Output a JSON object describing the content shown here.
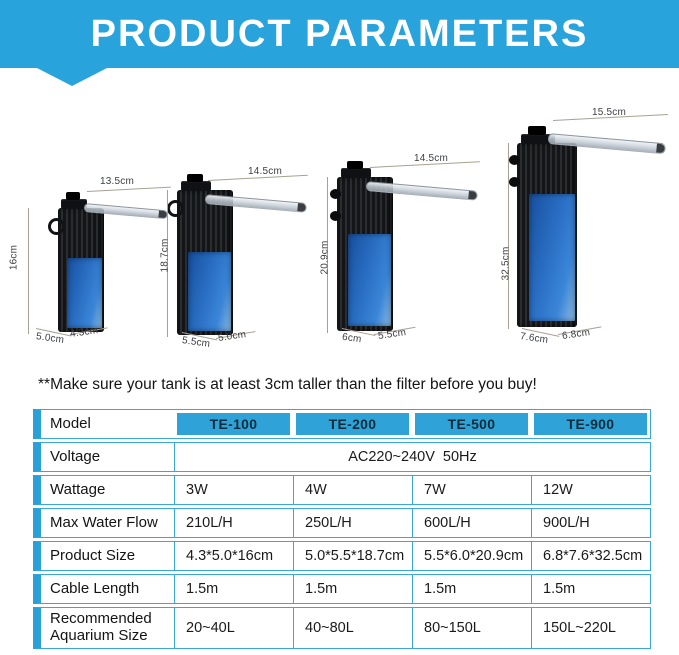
{
  "header": {
    "title": "PRODUCT PARAMETERS"
  },
  "note": "**Make sure your tank is at least 3cm taller than the filter before you buy!",
  "colors": {
    "accent": "#29a3dc",
    "model_chip": "#2fa3d8",
    "table_border": "#3aa7d8",
    "filter_body_blue": "#2a6fc4"
  },
  "filters": [
    {
      "model": "TE-100",
      "height_label": "16cm",
      "tube_label": "13.5cm",
      "base_left_label": "5.0cm",
      "base_right_label": "4.3cm"
    },
    {
      "model": "TE-200",
      "height_label": "18.7cm",
      "tube_label": "14.5cm",
      "base_left_label": "5.5cm",
      "base_right_label": "5.0cm"
    },
    {
      "model": "TE-500",
      "height_label": "20.9cm",
      "tube_label": "14.5cm",
      "base_left_label": "6cm",
      "base_right_label": "5.5cm"
    },
    {
      "model": "TE-900",
      "height_label": "32.5cm",
      "tube_label": "15.5cm",
      "base_left_label": "7.6cm",
      "base_right_label": "6.8cm"
    }
  ],
  "table": {
    "rows": [
      {
        "label": "Model",
        "type": "chips",
        "values": [
          "TE-100",
          "TE-200",
          "TE-500",
          "TE-900"
        ]
      },
      {
        "label": "Voltage",
        "type": "merged",
        "value": "AC220~240V  50Hz"
      },
      {
        "label": "Wattage",
        "type": "cells",
        "values": [
          "3W",
          "4W",
          "7W",
          "12W"
        ]
      },
      {
        "label": "Max Water Flow",
        "type": "cells",
        "values": [
          "210L/H",
          "250L/H",
          "600L/H",
          "900L/H"
        ]
      },
      {
        "label": "Product Size",
        "type": "cells",
        "values": [
          "4.3*5.0*16cm",
          "5.0*5.5*18.7cm",
          "5.5*6.0*20.9cm",
          "6.8*7.6*32.5cm"
        ]
      },
      {
        "label": "Cable Length",
        "type": "cells",
        "values": [
          "1.5m",
          "1.5m",
          "1.5m",
          "1.5m"
        ]
      },
      {
        "label": "Recommended Aquarium Size",
        "type": "cells",
        "tall": true,
        "values": [
          "20~40L",
          "40~80L",
          "80~150L",
          "150L~220L"
        ]
      }
    ]
  }
}
